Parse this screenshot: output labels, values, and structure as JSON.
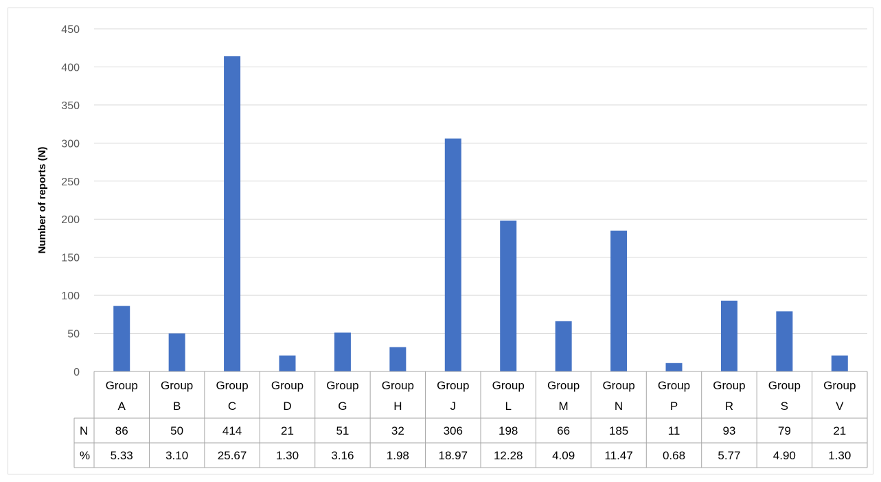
{
  "chart_data": {
    "type": "bar",
    "categories": [
      [
        "Group",
        "A"
      ],
      [
        "Group",
        "B"
      ],
      [
        "Group",
        "C"
      ],
      [
        "Group",
        "D"
      ],
      [
        "Group",
        "G"
      ],
      [
        "Group",
        "H"
      ],
      [
        "Group",
        "J"
      ],
      [
        "Group",
        "L"
      ],
      [
        "Group",
        "M"
      ],
      [
        "Group",
        "N"
      ],
      [
        "Group",
        "P"
      ],
      [
        "Group",
        "R"
      ],
      [
        "Group",
        "S"
      ],
      [
        "Group",
        "V"
      ]
    ],
    "values": [
      86,
      50,
      414,
      21,
      51,
      32,
      306,
      198,
      66,
      185,
      11,
      93,
      79,
      21
    ],
    "ylabel": "Number of reports (N)",
    "ylim": [
      0,
      450
    ],
    "yticks": [
      0,
      50,
      100,
      150,
      200,
      250,
      300,
      350,
      400,
      450
    ],
    "grid": true,
    "bar_color": "#4472C4",
    "table": {
      "rows": [
        {
          "label": "N",
          "values": [
            "86",
            "50",
            "414",
            "21",
            "51",
            "32",
            "306",
            "198",
            "66",
            "185",
            "11",
            "93",
            "79",
            "21"
          ]
        },
        {
          "label": "%",
          "values": [
            "5.33",
            "3.10",
            "25.67",
            "1.30",
            "3.16",
            "1.98",
            "18.97",
            "12.28",
            "4.09",
            "11.47",
            "0.68",
            "5.77",
            "4.90",
            "1.30"
          ]
        }
      ]
    }
  }
}
